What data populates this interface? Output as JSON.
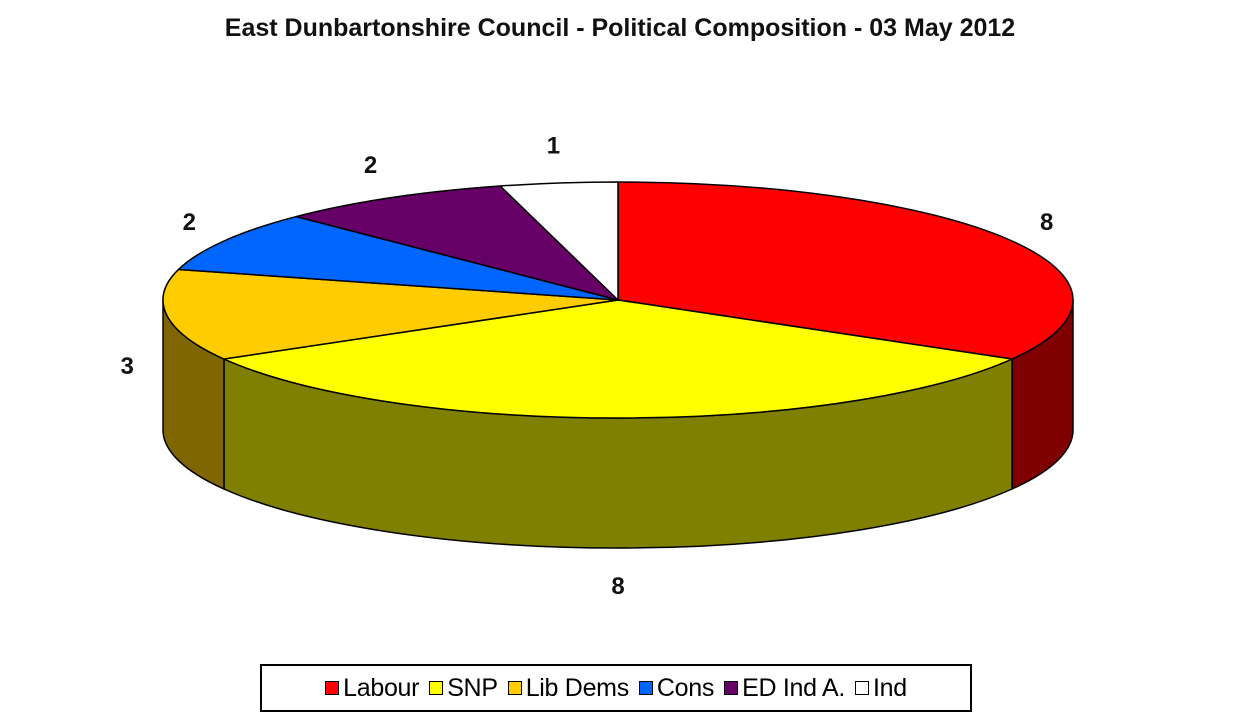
{
  "chart_data": {
    "type": "pie",
    "title": "East Dunbartonshire Council - Political Composition - 03 May 2012",
    "slices": [
      {
        "name": "Labour",
        "value": 8,
        "color": "#FF0000",
        "side_color": "#800000"
      },
      {
        "name": "SNP",
        "value": 8,
        "color": "#FFFF00",
        "side_color": "#808000"
      },
      {
        "name": "Lib Dems",
        "value": 3,
        "color": "#FFCC00",
        "side_color": "#806600"
      },
      {
        "name": "Cons",
        "value": 2,
        "color": "#0066FF",
        "side_color": "#003380"
      },
      {
        "name": "ED Ind A.",
        "value": 2,
        "color": "#660066",
        "side_color": "#330033"
      },
      {
        "name": "Ind",
        "value": 1,
        "color": "#FFFFFF",
        "side_color": "#808080"
      }
    ],
    "legend_position": "bottom",
    "three_d": true
  }
}
